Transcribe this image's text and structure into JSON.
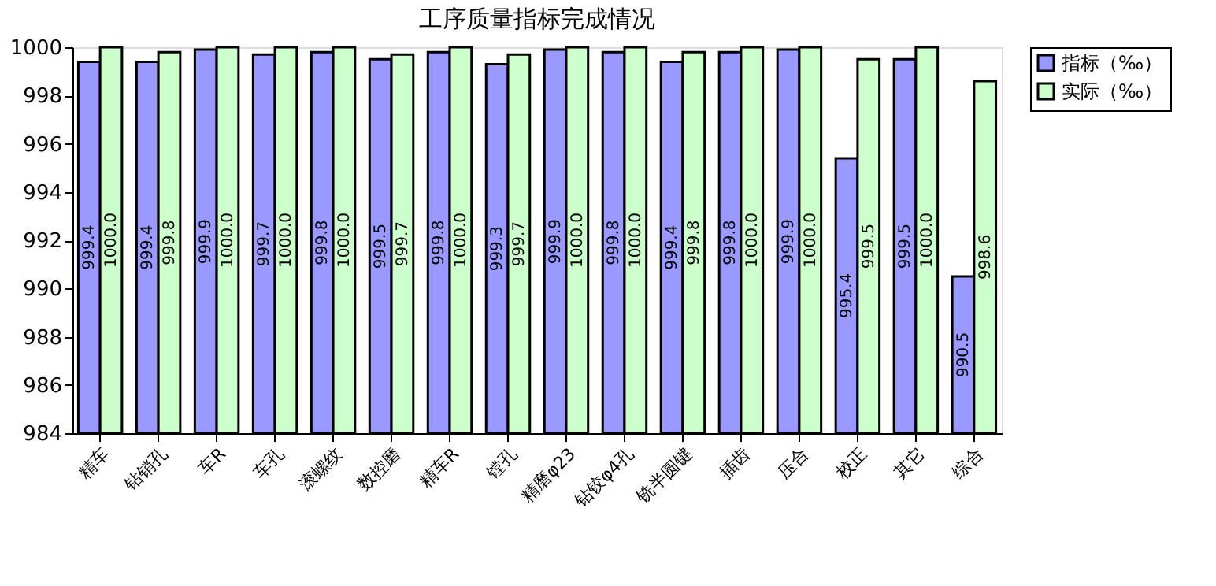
{
  "chart_data": {
    "type": "bar",
    "title": "工序质量指标完成情况",
    "categories": [
      "精车",
      "钻销孔",
      "车R",
      "车孔",
      "滚螺纹",
      "数控磨",
      "精车R",
      "镗孔",
      "精磨φ23",
      "钻铰φ4孔",
      "铣半圆键",
      "插齿",
      "压合",
      "校正",
      "其它",
      "综合"
    ],
    "series": [
      {
        "name": "指标（‰）",
        "color": "#9999ff",
        "values": [
          999.4,
          999.4,
          999.9,
          999.7,
          999.8,
          999.5,
          999.8,
          999.3,
          999.9,
          999.8,
          999.4,
          999.8,
          999.9,
          995.4,
          999.5,
          990.5
        ],
        "value_labels": [
          "999.4",
          "999.4",
          "999.9",
          "999.7",
          "999.8",
          "999.5",
          "999.8",
          "999.3",
          "999.9",
          "999.8",
          "999.4",
          "999.8",
          "999.9",
          "995.4",
          "999.5",
          "990.5"
        ]
      },
      {
        "name": "实际（‰）",
        "color": "#ccffcc",
        "values": [
          1000.0,
          999.8,
          1000.0,
          1000.0,
          1000.0,
          999.7,
          1000.0,
          999.7,
          1000.0,
          1000.0,
          999.8,
          1000.0,
          1000.0,
          999.5,
          1000.0,
          998.6
        ],
        "value_labels": [
          "1000.0",
          "999.8",
          "1000.0",
          "1000.0",
          "1000.0",
          "999.7",
          "1000.0",
          "999.7",
          "1000.0",
          "1000.0",
          "999.8",
          "1000.0",
          "1000.0",
          "999.5",
          "1000.0",
          "998.6"
        ]
      }
    ],
    "ylim": [
      984,
      1000
    ],
    "yticks": [
      984,
      986,
      988,
      990,
      992,
      994,
      996,
      998,
      1000
    ],
    "grid": false,
    "legend": "top right"
  }
}
